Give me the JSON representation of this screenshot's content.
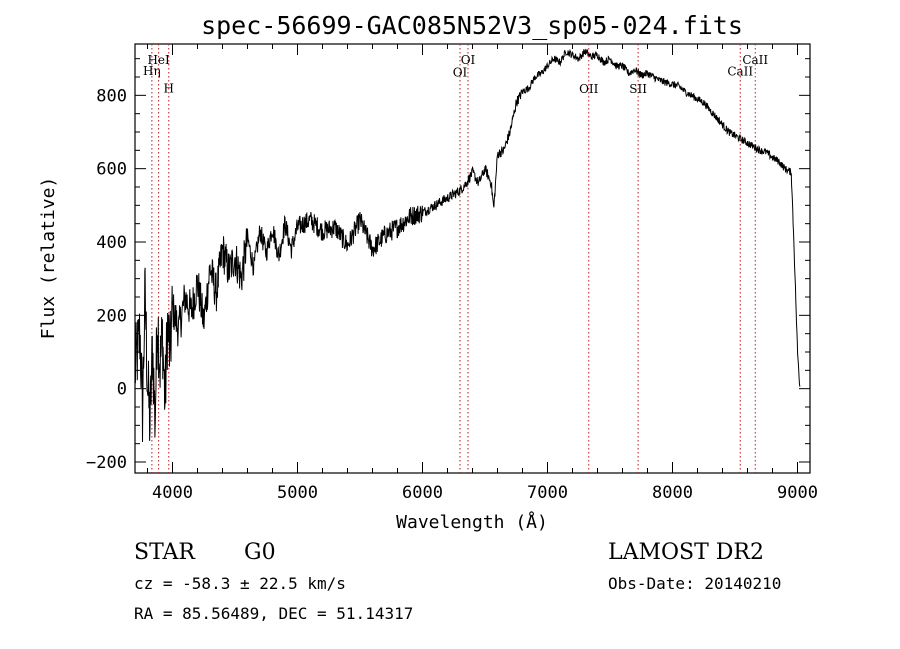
{
  "chart_data": {
    "type": "line",
    "title": "spec-56699-GAC085N52V3_sp05-024.fits",
    "xlabel": "Wavelength (Å)",
    "ylabel": "Flux (relative)",
    "xlim": [
      3700,
      9100
    ],
    "ylim": [
      -230,
      940
    ],
    "x_ticks": [
      4000,
      5000,
      6000,
      7000,
      8000,
      9000
    ],
    "y_ticks": [
      -200,
      0,
      200,
      400,
      600,
      800
    ],
    "grid": false,
    "line_color": "#000000",
    "marker_color": "#b22222",
    "spectrum": {
      "x": [
        3700,
        3740,
        3760,
        3780,
        3800,
        3820,
        3840,
        3860,
        3880,
        3900,
        3920,
        3940,
        3960,
        3980,
        4000,
        4050,
        4100,
        4150,
        4200,
        4250,
        4300,
        4350,
        4400,
        4450,
        4500,
        4550,
        4600,
        4650,
        4700,
        4750,
        4800,
        4850,
        4900,
        4950,
        5000,
        5100,
        5200,
        5300,
        5400,
        5500,
        5600,
        5700,
        5800,
        5900,
        6000,
        6100,
        6200,
        6300,
        6350,
        6400,
        6450,
        6500,
        6550,
        6570,
        6600,
        6650,
        6700,
        6750,
        6800,
        6850,
        6900,
        6950,
        7000,
        7050,
        7100,
        7150,
        7200,
        7250,
        7300,
        7350,
        7400,
        7450,
        7500,
        7550,
        7600,
        7650,
        7700,
        7750,
        7800,
        7850,
        7900,
        7950,
        8000,
        8050,
        8100,
        8150,
        8200,
        8250,
        8300,
        8350,
        8400,
        8450,
        8500,
        8550,
        8600,
        8650,
        8700,
        8750,
        8800,
        8850,
        8900,
        8950,
        8970,
        9000,
        9020
      ],
      "y": [
        50,
        150,
        -60,
        260,
        20,
        -100,
        120,
        -90,
        200,
        60,
        150,
        -40,
        180,
        90,
        220,
        160,
        250,
        210,
        290,
        180,
        330,
        260,
        380,
        320,
        360,
        300,
        410,
        330,
        430,
        370,
        440,
        360,
        450,
        380,
        440,
        460,
        430,
        440,
        390,
        460,
        380,
        420,
        440,
        470,
        480,
        500,
        520,
        540,
        560,
        590,
        560,
        600,
        560,
        490,
        640,
        650,
        700,
        780,
        810,
        820,
        850,
        860,
        880,
        900,
        890,
        920,
        910,
        900,
        920,
        905,
        910,
        890,
        900,
        880,
        880,
        860,
        870,
        855,
        860,
        850,
        840,
        835,
        830,
        825,
        810,
        800,
        790,
        780,
        760,
        740,
        720,
        700,
        690,
        680,
        670,
        660,
        650,
        645,
        630,
        620,
        600,
        590,
        410,
        100,
        0
      ]
    },
    "lines": [
      {
        "label": "Hη",
        "x": 3835,
        "label_y": 856
      },
      {
        "label": "HeI",
        "x": 3889,
        "label_y": 885
      },
      {
        "label": "H",
        "x": 3970,
        "label_y": 808
      },
      {
        "label": "OI",
        "x": 6300,
        "label_y": 851
      },
      {
        "label": "OI",
        "x": 6364,
        "label_y": 886
      },
      {
        "label": "OII",
        "x": 7330,
        "label_y": 806
      },
      {
        "label": "SII",
        "x": 7725,
        "label_y": 806
      },
      {
        "label": "CaII",
        "x": 8542,
        "label_y": 854
      },
      {
        "label": "CaII",
        "x": 8662,
        "label_y": 886
      }
    ]
  },
  "info": {
    "object_class": "STAR",
    "subclass": "G0",
    "velocity": "cz = -58.3 ± 22.5 km/s",
    "coordinates": "RA =  85.56489, DEC =  51.14317",
    "survey": "LAMOST DR2",
    "obs_date": "Obs-Date: 20140210"
  }
}
